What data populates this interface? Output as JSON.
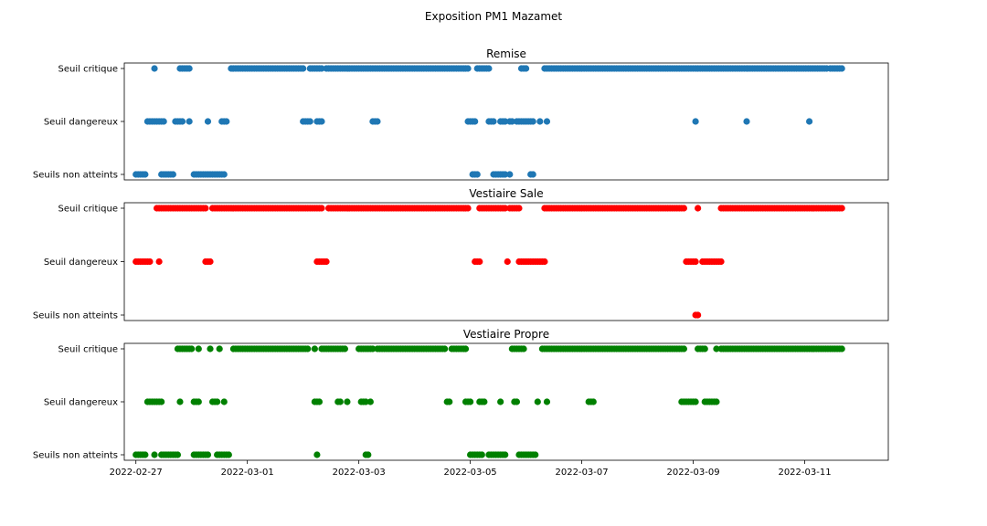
{
  "figure": {
    "title": "Exposition PM1 Mazamet"
  },
  "chart_data": {
    "type": "scatter",
    "x_axis": {
      "kind": "date",
      "range": [
        "2022-02-26T19:00",
        "2022-03-12T12:00"
      ],
      "tick_labels": [
        "2022-02-27",
        "2022-03-01",
        "2022-03-03",
        "2022-03-05",
        "2022-03-07",
        "2022-03-09",
        "2022-03-11"
      ]
    },
    "y_categories": [
      "Seuils non atteints",
      "Seuil dangereux",
      "Seuil critique"
    ],
    "panels": [
      {
        "title": "Remise",
        "color": "#1f77b4",
        "show_x_ticks": false,
        "series": [
          {
            "level": "Seuil critique",
            "ranges": [
              [
                "2022-02-27T08:00",
                "2022-02-27T08:00"
              ],
              [
                "2022-02-27T19:00",
                "2022-02-27T23:00"
              ],
              [
                "2022-02-28T17:00",
                "2022-03-02T00:00"
              ],
              [
                "2022-03-02T03:00",
                "2022-03-02T08:00"
              ],
              [
                "2022-03-02T10:00",
                "2022-03-03T08:00"
              ],
              [
                "2022-03-03T09:00",
                "2022-03-04T23:00"
              ],
              [
                "2022-03-05T03:00",
                "2022-03-05T08:00"
              ],
              [
                "2022-03-05T22:00",
                "2022-03-06T00:00"
              ],
              [
                "2022-03-06T08:00",
                "2022-03-06T09:00"
              ],
              [
                "2022-03-06T10:00",
                "2022-03-09T00:00"
              ],
              [
                "2022-03-09T01:00",
                "2022-03-09T23:00"
              ],
              [
                "2022-03-09T23:30",
                "2022-03-11T10:00"
              ],
              [
                "2022-03-11T11:00",
                "2022-03-11T16:00"
              ]
            ]
          },
          {
            "level": "Seuil dangereux",
            "ranges": [
              [
                "2022-02-27T05:00",
                "2022-02-27T12:00"
              ],
              [
                "2022-02-27T17:00",
                "2022-02-27T20:00"
              ],
              [
                "2022-02-27T23:00",
                "2022-02-27T23:00"
              ],
              [
                "2022-02-28T07:00",
                "2022-02-28T07:00"
              ],
              [
                "2022-02-28T13:00",
                "2022-02-28T15:00"
              ],
              [
                "2022-03-02T00:00",
                "2022-03-02T03:00"
              ],
              [
                "2022-03-02T06:00",
                "2022-03-02T08:00"
              ],
              [
                "2022-03-03T06:00",
                "2022-03-03T08:00"
              ],
              [
                "2022-03-04T23:00",
                "2022-03-05T02:00"
              ],
              [
                "2022-03-05T08:00",
                "2022-03-05T10:00"
              ],
              [
                "2022-03-05T13:00",
                "2022-03-05T15:00"
              ],
              [
                "2022-03-05T17:00",
                "2022-03-05T18:00"
              ],
              [
                "2022-03-05T20:00",
                "2022-03-06T03:00"
              ],
              [
                "2022-03-06T06:00",
                "2022-03-06T06:00"
              ],
              [
                "2022-03-06T09:00",
                "2022-03-06T09:00"
              ],
              [
                "2022-03-09T01:00",
                "2022-03-09T01:00"
              ],
              [
                "2022-03-09T23:00",
                "2022-03-09T23:00"
              ],
              [
                "2022-03-11T02:00",
                "2022-03-11T02:00"
              ]
            ]
          },
          {
            "level": "Seuils non atteints",
            "ranges": [
              [
                "2022-02-27T00:00",
                "2022-02-27T04:00"
              ],
              [
                "2022-02-27T11:00",
                "2022-02-27T16:00"
              ],
              [
                "2022-02-28T01:00",
                "2022-02-28T07:00"
              ],
              [
                "2022-02-28T08:00",
                "2022-02-28T14:00"
              ],
              [
                "2022-03-05T01:00",
                "2022-03-05T03:00"
              ],
              [
                "2022-03-05T10:00",
                "2022-03-05T15:00"
              ],
              [
                "2022-03-05T17:00",
                "2022-03-05T17:00"
              ],
              [
                "2022-03-06T02:00",
                "2022-03-06T03:00"
              ]
            ]
          }
        ]
      },
      {
        "title": "Vestiaire Sale",
        "color": "#ff0000",
        "show_x_ticks": false,
        "series": [
          {
            "level": "Seuil critique",
            "ranges": [
              [
                "2022-02-27T09:00",
                "2022-02-28T06:00"
              ],
              [
                "2022-02-28T09:00",
                "2022-03-02T08:00"
              ],
              [
                "2022-03-02T11:00",
                "2022-03-04T23:00"
              ],
              [
                "2022-03-05T04:00",
                "2022-03-05T15:00"
              ],
              [
                "2022-03-05T17:00",
                "2022-03-05T21:00"
              ],
              [
                "2022-03-06T08:00",
                "2022-03-08T20:00"
              ],
              [
                "2022-03-09T02:00",
                "2022-03-09T02:00"
              ],
              [
                "2022-03-09T12:00",
                "2022-03-11T16:00"
              ]
            ]
          },
          {
            "level": "Seuil dangereux",
            "ranges": [
              [
                "2022-02-27T00:00",
                "2022-02-27T06:00"
              ],
              [
                "2022-02-27T10:00",
                "2022-02-27T10:00"
              ],
              [
                "2022-02-28T06:00",
                "2022-02-28T08:00"
              ],
              [
                "2022-03-02T06:00",
                "2022-03-02T10:00"
              ],
              [
                "2022-03-05T02:00",
                "2022-03-05T04:00"
              ],
              [
                "2022-03-05T16:00",
                "2022-03-05T16:00"
              ],
              [
                "2022-03-05T21:00",
                "2022-03-06T08:00"
              ],
              [
                "2022-03-08T21:00",
                "2022-03-09T01:00"
              ],
              [
                "2022-03-09T04:00",
                "2022-03-09T12:00"
              ]
            ]
          },
          {
            "level": "Seuils non atteints",
            "ranges": [
              [
                "2022-03-09T01:00",
                "2022-03-09T02:00"
              ]
            ]
          }
        ]
      },
      {
        "title": "Vestiaire Propre",
        "color": "#008000",
        "show_x_ticks": true,
        "series": [
          {
            "level": "Seuil critique",
            "ranges": [
              [
                "2022-02-27T18:00",
                "2022-02-28T00:00"
              ],
              [
                "2022-02-28T03:00",
                "2022-02-28T03:00"
              ],
              [
                "2022-02-28T08:00",
                "2022-02-28T08:00"
              ],
              [
                "2022-02-28T12:00",
                "2022-02-28T12:00"
              ],
              [
                "2022-02-28T18:00",
                "2022-03-02T02:00"
              ],
              [
                "2022-03-02T05:00",
                "2022-03-02T05:00"
              ],
              [
                "2022-03-02T08:00",
                "2022-03-02T18:00"
              ],
              [
                "2022-03-03T00:00",
                "2022-03-03T06:00"
              ],
              [
                "2022-03-03T08:00",
                "2022-03-04T13:00"
              ],
              [
                "2022-03-04T16:00",
                "2022-03-04T22:00"
              ],
              [
                "2022-03-05T18:00",
                "2022-03-05T23:00"
              ],
              [
                "2022-03-06T07:00",
                "2022-03-06T09:00"
              ],
              [
                "2022-03-06T10:00",
                "2022-03-07T03:00"
              ],
              [
                "2022-03-07T04:00",
                "2022-03-08T20:00"
              ],
              [
                "2022-03-09T02:00",
                "2022-03-09T05:00"
              ],
              [
                "2022-03-09T10:00",
                "2022-03-09T10:00"
              ],
              [
                "2022-03-09T12:00",
                "2022-03-11T16:00"
              ]
            ]
          },
          {
            "level": "Seuil dangereux",
            "ranges": [
              [
                "2022-02-27T05:00",
                "2022-02-27T11:00"
              ],
              [
                "2022-02-27T19:00",
                "2022-02-27T19:00"
              ],
              [
                "2022-02-28T01:00",
                "2022-02-28T03:00"
              ],
              [
                "2022-02-28T09:00",
                "2022-02-28T11:00"
              ],
              [
                "2022-02-28T14:00",
                "2022-02-28T14:00"
              ],
              [
                "2022-03-02T05:00",
                "2022-03-02T07:00"
              ],
              [
                "2022-03-02T15:00",
                "2022-03-02T16:00"
              ],
              [
                "2022-03-02T19:00",
                "2022-03-02T19:00"
              ],
              [
                "2022-03-03T01:00",
                "2022-03-03T03:00"
              ],
              [
                "2022-03-03T05:00",
                "2022-03-03T05:00"
              ],
              [
                "2022-03-04T14:00",
                "2022-03-04T15:00"
              ],
              [
                "2022-03-04T22:00",
                "2022-03-05T00:00"
              ],
              [
                "2022-03-05T04:00",
                "2022-03-05T06:00"
              ],
              [
                "2022-03-05T13:00",
                "2022-03-05T13:00"
              ],
              [
                "2022-03-05T19:00",
                "2022-03-05T20:00"
              ],
              [
                "2022-03-06T05:00",
                "2022-03-06T05:00"
              ],
              [
                "2022-03-06T09:00",
                "2022-03-06T09:00"
              ],
              [
                "2022-03-07T03:00",
                "2022-03-07T05:00"
              ],
              [
                "2022-03-08T19:00",
                "2022-03-09T01:00"
              ],
              [
                "2022-03-09T05:00",
                "2022-03-09T10:00"
              ]
            ]
          },
          {
            "level": "Seuils non atteints",
            "ranges": [
              [
                "2022-02-27T00:00",
                "2022-02-27T04:00"
              ],
              [
                "2022-02-27T08:00",
                "2022-02-27T08:00"
              ],
              [
                "2022-02-27T11:00",
                "2022-02-27T18:00"
              ],
              [
                "2022-02-28T01:00",
                "2022-02-28T07:00"
              ],
              [
                "2022-02-28T11:00",
                "2022-02-28T16:00"
              ],
              [
                "2022-03-02T06:00",
                "2022-03-02T06:00"
              ],
              [
                "2022-03-03T03:00",
                "2022-03-03T04:00"
              ],
              [
                "2022-03-05T00:00",
                "2022-03-05T05:00"
              ],
              [
                "2022-03-05T08:00",
                "2022-03-05T15:00"
              ],
              [
                "2022-03-05T21:00",
                "2022-03-06T04:00"
              ]
            ]
          }
        ]
      }
    ]
  }
}
